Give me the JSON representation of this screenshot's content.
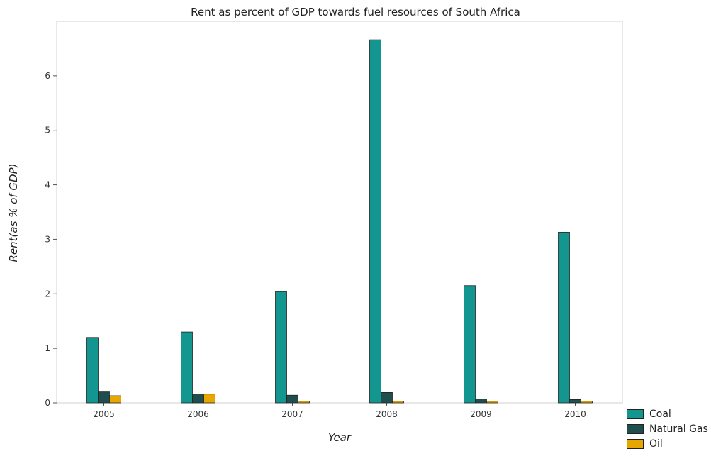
{
  "chart_data": {
    "type": "bar",
    "title": "Rent as percent of GDP towards fuel resources of South Africa",
    "xlabel": "Year",
    "ylabel": "Rent(as % of GDP)",
    "categories": [
      "2005",
      "2006",
      "2007",
      "2008",
      "2009",
      "2010"
    ],
    "ylim": [
      0,
      7
    ],
    "yticks": [
      0,
      1,
      2,
      3,
      4,
      5,
      6
    ],
    "series": [
      {
        "name": "Coal",
        "color": "#13968f",
        "values": [
          1.2,
          1.3,
          2.04,
          6.66,
          2.15,
          3.13
        ]
      },
      {
        "name": "Natural Gas",
        "color": "#1f4e4e",
        "values": [
          0.2,
          0.16,
          0.14,
          0.19,
          0.07,
          0.06
        ]
      },
      {
        "name": "Oil",
        "color": "#e8a600",
        "values": [
          0.13,
          0.16,
          0.03,
          0.03,
          0.03,
          0.03
        ]
      }
    ],
    "grid": false,
    "legend_position": "bottom-right"
  }
}
